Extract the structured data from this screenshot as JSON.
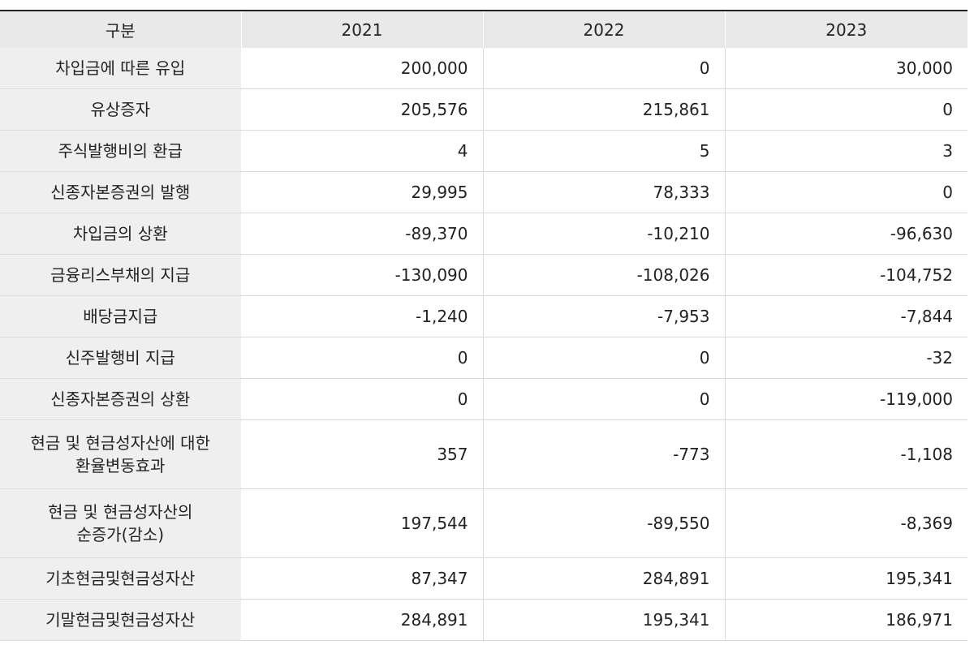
{
  "table": {
    "headers": [
      "구분",
      "2021",
      "2022",
      "2023"
    ],
    "rows": [
      {
        "label": "차입금에 따른 유입",
        "values": [
          "200,000",
          "0",
          "30,000"
        ]
      },
      {
        "label": "유상증자",
        "values": [
          "205,576",
          "215,861",
          "0"
        ]
      },
      {
        "label": "주식발행비의 환급",
        "values": [
          "4",
          "5",
          "3"
        ]
      },
      {
        "label": "신종자본증권의 발행",
        "values": [
          "29,995",
          "78,333",
          "0"
        ]
      },
      {
        "label": "차입금의 상환",
        "values": [
          "-89,370",
          "-10,210",
          "-96,630"
        ]
      },
      {
        "label": "금융리스부채의 지급",
        "values": [
          "-130,090",
          "-108,026",
          "-104,752"
        ]
      },
      {
        "label": "배당금지급",
        "values": [
          "-1,240",
          "-7,953",
          "-7,844"
        ]
      },
      {
        "label": "신주발행비 지급",
        "values": [
          "0",
          "0",
          "-32"
        ]
      },
      {
        "label": "신종자본증권의 상환",
        "values": [
          "0",
          "0",
          "-119,000"
        ]
      },
      {
        "label": "현금 및 현금성자산에 대한 환율변동효과",
        "label_lines": [
          "현금 및 현금성자산에 대한",
          "환율변동효과"
        ],
        "values": [
          "357",
          "-773",
          "-1,108"
        ]
      },
      {
        "label": "현금 및 현금성자산의 순증가(감소)",
        "label_lines": [
          "현금 및 현금성자산의",
          "순증가(감소)"
        ],
        "values": [
          "197,544",
          "-89,550",
          "-8,369"
        ]
      },
      {
        "label": "기초현금및현금성자산",
        "values": [
          "87,347",
          "284,891",
          "195,341"
        ]
      },
      {
        "label": "기말현금및현금성자산",
        "values": [
          "284,891",
          "195,341",
          "186,971"
        ]
      }
    ]
  }
}
